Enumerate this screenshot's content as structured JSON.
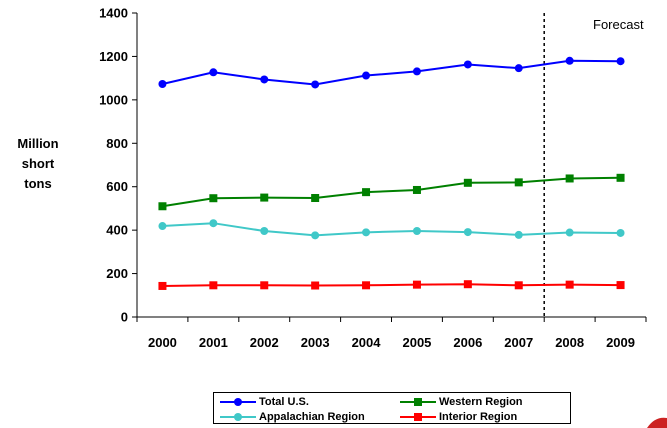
{
  "chart_data": {
    "type": "line",
    "title": "",
    "xlabel": "",
    "ylabel": "Million short tons",
    "ylabel_lines": [
      "Million",
      "short",
      "tons"
    ],
    "categories": [
      "2000",
      "2001",
      "2002",
      "2003",
      "2004",
      "2005",
      "2006",
      "2007",
      "2008",
      "2009"
    ],
    "ylim": [
      0,
      1400
    ],
    "yticks": [
      "0",
      "200",
      "400",
      "600",
      "800",
      "1000",
      "1200",
      "1400"
    ],
    "grid": false,
    "legend_placement": "bottom",
    "forecast": {
      "label": "Forecast",
      "starts_after": "2007"
    },
    "series": [
      {
        "name": "Total U.S.",
        "color": "#0000ff",
        "marker": "circle",
        "values": [
          1073,
          1127,
          1094,
          1071,
          1112,
          1131,
          1163,
          1146,
          1180,
          1178
        ]
      },
      {
        "name": "Western Region",
        "color": "#008000",
        "marker": "square",
        "values": [
          510,
          547,
          550,
          548,
          575,
          585,
          618,
          620,
          638,
          641
        ]
      },
      {
        "name": "Appalachian Region",
        "color": "#40c8c8",
        "marker": "circle",
        "values": [
          419,
          432,
          396,
          376,
          390,
          396,
          391,
          378,
          389,
          387
        ]
      },
      {
        "name": "Interior Region",
        "color": "#ff0000",
        "marker": "square",
        "values": [
          143,
          146,
          146,
          145,
          146,
          149,
          151,
          146,
          149,
          147
        ]
      }
    ]
  }
}
